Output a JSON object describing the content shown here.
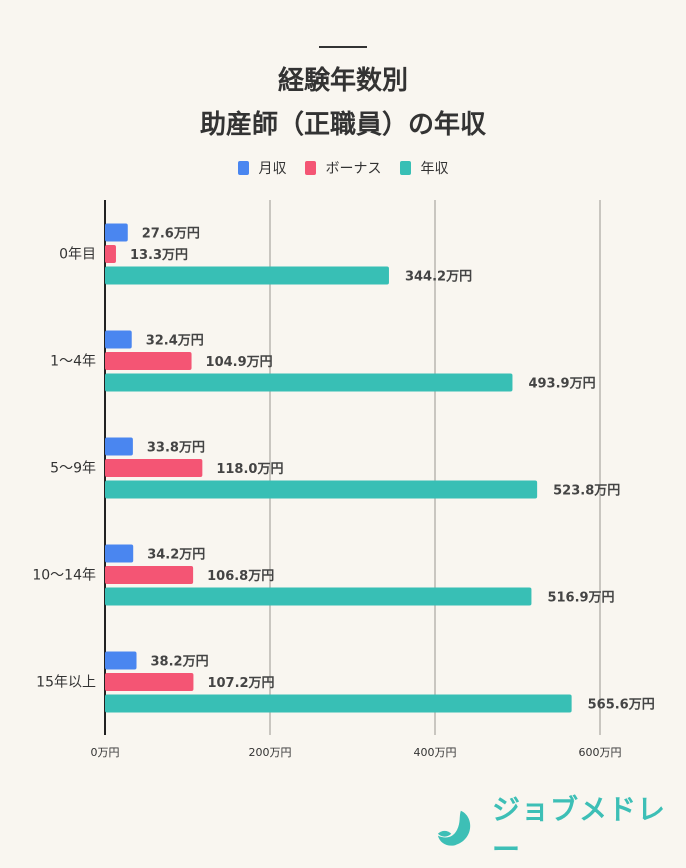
{
  "chart_data": {
    "type": "bar",
    "orientation": "horizontal",
    "title": [
      "経験年数別",
      "助産師（正職員）の年収"
    ],
    "categories": [
      "0年目",
      "1〜4年",
      "5〜9年",
      "10〜14年",
      "15年以上"
    ],
    "series": [
      {
        "name": "月収",
        "color": "#4a86f0",
        "values": [
          27.6,
          32.4,
          33.8,
          34.2,
          38.2
        ]
      },
      {
        "name": "ボーナス",
        "color": "#f45574",
        "values": [
          13.3,
          104.9,
          118.0,
          106.8,
          107.2
        ]
      },
      {
        "name": "年収",
        "color": "#38bfb5",
        "values": [
          344.2,
          493.9,
          523.8,
          516.9,
          565.6
        ]
      }
    ],
    "value_suffix": "万円",
    "xlim": [
      0,
      600
    ],
    "xticks": [
      0,
      200,
      400,
      600
    ],
    "xtick_labels": [
      "0万円",
      "200万円",
      "400万円",
      "600万円"
    ],
    "grid": true,
    "legend": "top-center"
  },
  "logo": {
    "text": "ジョブメドレー",
    "color": "#3dbfb6"
  }
}
